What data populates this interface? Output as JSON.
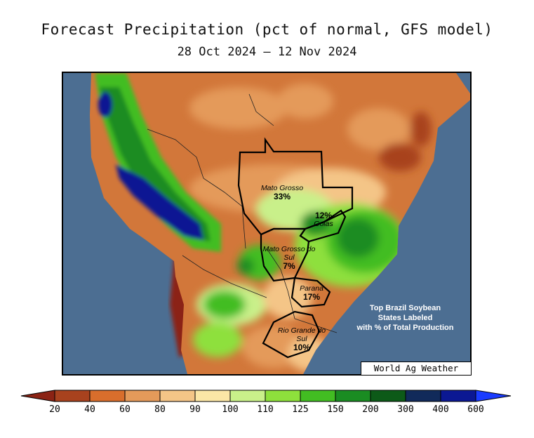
{
  "title": "Forecast Precipitation (pct of normal, GFS model)",
  "date_range": "28 Oct 2024 — 12 Nov 2024",
  "states": [
    {
      "name": "Mato Grosso",
      "pct": "33%"
    },
    {
      "name": "Goias",
      "pct": "12%"
    },
    {
      "name": "Mato Grosso do Sul",
      "pct": "7%"
    },
    {
      "name": "Parana",
      "pct": "17%"
    },
    {
      "name": "Rio Grande do Sul",
      "pct": "10%"
    }
  ],
  "note_lines": [
    "Top Brazil Soybean",
    "States Labeled",
    "with % of Total Production"
  ],
  "brand": "World Ag Weather",
  "legend": {
    "ticks": [
      "20",
      "40",
      "60",
      "80",
      "90",
      "100",
      "110",
      "125",
      "150",
      "200",
      "300",
      "400",
      "600"
    ],
    "colors": [
      "#8b2314",
      "#a8421e",
      "#d96e2c",
      "#e49a5a",
      "#f4c587",
      "#fbe6a6",
      "#c9f08a",
      "#8ee03c",
      "#42bd22",
      "#1a8c22",
      "#0d5a18",
      "#112a5a",
      "#0b1893",
      "#1a3cff"
    ]
  },
  "colors": {
    "ocean": "#4c6e92",
    "land_dry": "#d2773a",
    "land_light": "#e9a868"
  }
}
